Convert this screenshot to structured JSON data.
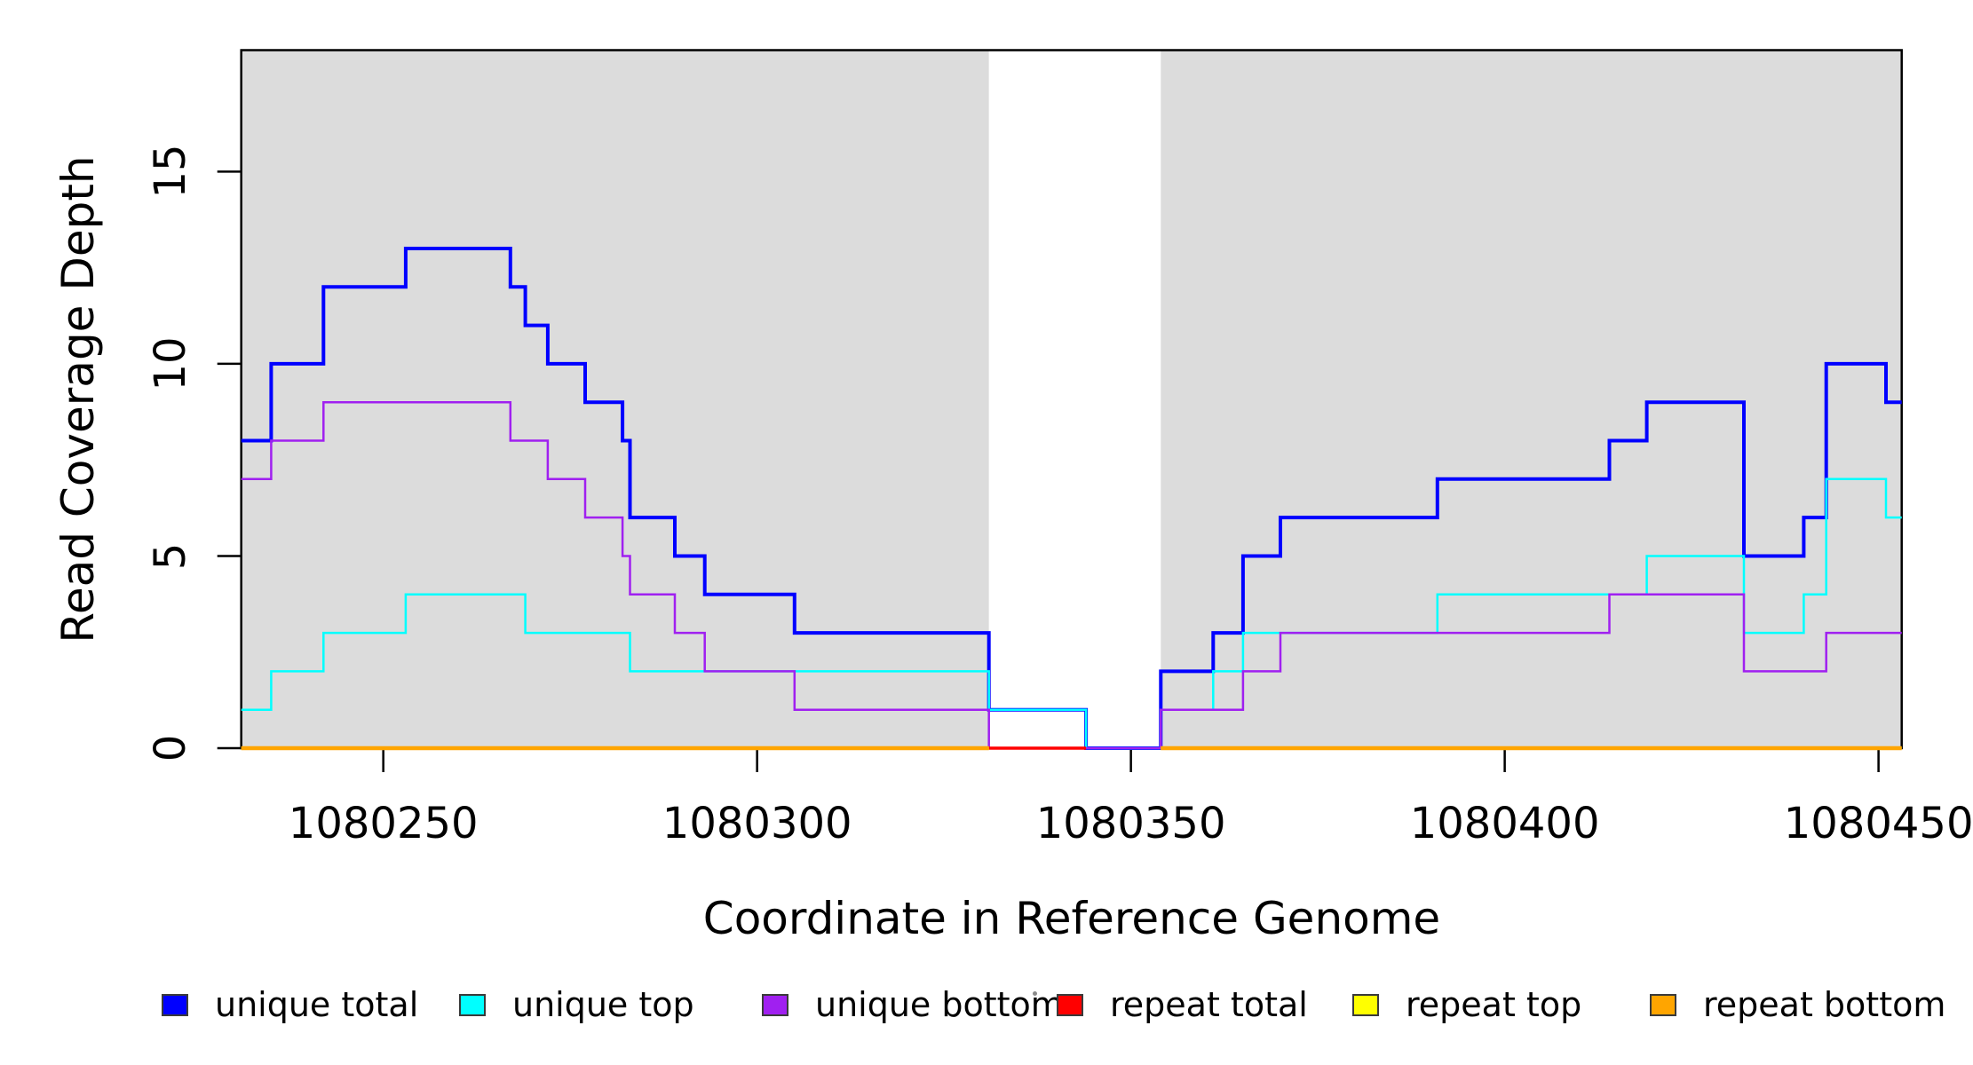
{
  "chart_data": {
    "type": "line",
    "subtype": "step-coverage",
    "title": "",
    "xlabel": "Coordinate in Reference Genome",
    "ylabel": "Read Coverage Depth",
    "xlim": [
      1080231,
      1080453.1
    ],
    "ylim": [
      0,
      18.16
    ],
    "grid": false,
    "x_ticks": [
      {
        "value": 1080250,
        "label": "1080250"
      },
      {
        "value": 1080300,
        "label": "1080300"
      },
      {
        "value": 1080350,
        "label": "1080350"
      },
      {
        "value": 1080400,
        "label": "1080400"
      },
      {
        "value": 1080450,
        "label": "1080450"
      }
    ],
    "y_ticks": [
      {
        "value": 0,
        "label": "0"
      },
      {
        "value": 5,
        "label": "5"
      },
      {
        "value": 10,
        "label": "10"
      },
      {
        "value": 15,
        "label": "15"
      }
    ],
    "shaded_regions": {
      "color": "#DCDCDC",
      "regions": [
        [
          1080231,
          1080331
        ],
        [
          1080354,
          1080453.1
        ]
      ]
    },
    "series": [
      {
        "name": "unique total",
        "color": "#0000FF",
        "width": 4,
        "paths": [
          {
            "end": 1080453.1,
            "pts": [
              [
                1080231,
                8
              ],
              [
                1080235,
                10
              ],
              [
                1080242,
                12
              ],
              [
                1080253,
                13
              ],
              [
                1080267,
                12
              ],
              [
                1080269,
                11
              ],
              [
                1080272,
                10
              ],
              [
                1080277,
                9
              ],
              [
                1080282,
                8
              ],
              [
                1080283,
                6
              ],
              [
                1080289,
                5
              ],
              [
                1080293,
                4
              ],
              [
                1080305,
                3
              ],
              [
                1080331,
                1
              ],
              [
                1080344,
                0
              ],
              [
                1080354,
                2
              ],
              [
                1080361,
                3
              ],
              [
                1080365,
                5
              ],
              [
                1080370,
                6
              ],
              [
                1080391,
                7
              ],
              [
                1080414,
                8
              ],
              [
                1080419,
                9
              ],
              [
                1080432,
                5
              ],
              [
                1080440,
                6
              ],
              [
                1080443,
                10
              ],
              [
                1080451,
                9
              ]
            ]
          }
        ]
      },
      {
        "name": "unique top",
        "color": "#00FFFF",
        "width": 2.5,
        "paths": [
          {
            "end": 1080453.1,
            "pts": [
              [
                1080231,
                1
              ],
              [
                1080235,
                2
              ],
              [
                1080242,
                3
              ],
              [
                1080253,
                4
              ],
              [
                1080269,
                3
              ],
              [
                1080283,
                2
              ],
              [
                1080331,
                1
              ],
              [
                1080344,
                0
              ],
              [
                1080354,
                1
              ],
              [
                1080361,
                2
              ],
              [
                1080365,
                3
              ],
              [
                1080391,
                4
              ],
              [
                1080419,
                5
              ],
              [
                1080432,
                3
              ],
              [
                1080440,
                4
              ],
              [
                1080443,
                7
              ],
              [
                1080451,
                6
              ]
            ]
          }
        ]
      },
      {
        "name": "unique bottom",
        "color": "#A020F0",
        "width": 2.5,
        "paths": [
          {
            "end": 1080453.1,
            "pts": [
              [
                1080231,
                7
              ],
              [
                1080235,
                8
              ],
              [
                1080242,
                9
              ],
              [
                1080267,
                8
              ],
              [
                1080272,
                7
              ],
              [
                1080277,
                6
              ],
              [
                1080282,
                5
              ],
              [
                1080283,
                4
              ],
              [
                1080289,
                3
              ],
              [
                1080293,
                2
              ],
              [
                1080305,
                1
              ],
              [
                1080331,
                0
              ],
              [
                1080354,
                1
              ],
              [
                1080365,
                2
              ],
              [
                1080370,
                3
              ],
              [
                1080414,
                4
              ],
              [
                1080432,
                2
              ],
              [
                1080443,
                3
              ]
            ]
          }
        ]
      },
      {
        "name": "repeat total",
        "color": "#FF0000",
        "width": 3.5,
        "paths": [
          {
            "end": 1080344,
            "pts": [
              [
                1080331,
                0
              ]
            ]
          }
        ]
      },
      {
        "name": "repeat top",
        "color": "#FFFF00",
        "width": 3,
        "paths": [
          {
            "end": 1080331,
            "pts": [
              [
                1080231,
                0
              ]
            ]
          },
          {
            "end": 1080453.1,
            "pts": [
              [
                1080354,
                0
              ]
            ]
          }
        ]
      },
      {
        "name": "repeat bottom",
        "color": "#FFA500",
        "width": 4.5,
        "paths": [
          {
            "end": 1080331,
            "pts": [
              [
                1080231,
                0
              ]
            ]
          },
          {
            "end": 1080453.1,
            "pts": [
              [
                1080354,
                0
              ]
            ]
          }
        ]
      }
    ],
    "legend": {
      "position": "bottom",
      "items": [
        {
          "label": "unique total",
          "color": "#0000FF"
        },
        {
          "label": "unique top",
          "color": "#00FFFF"
        },
        {
          "label": "unique bottom",
          "color": "#A020F0"
        },
        {
          "label": "repeat total",
          "color": "#FF0000"
        },
        {
          "label": "repeat top",
          "color": "#FFFF00"
        },
        {
          "label": "repeat bottom",
          "color": "#FFA500"
        }
      ]
    }
  }
}
